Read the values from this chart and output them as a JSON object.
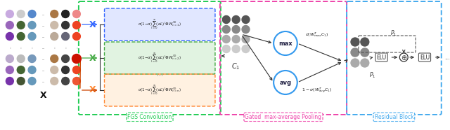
{
  "bg_color": "#ffffff",
  "fgs_box_color": "#22cc55",
  "gated_box_color": "#ee44aa",
  "residual_box_color": "#44aaee",
  "dot_grid": {
    "col_colors": [
      [
        "#c8aae0",
        "#9966bb",
        "#7733aa",
        "#bbaacc",
        "#9966bb",
        "#7733aa",
        "#6622aa"
      ],
      [
        "#cccccc",
        "#446633",
        "#446633",
        "#bbbbbb",
        "#446633",
        "#445533",
        "#445533"
      ],
      [
        "#5588cc",
        "#6699bb",
        "#6699bb",
        "#7799bb",
        "#6699bb",
        "#6699bb",
        "#5588aa"
      ],
      null,
      [
        "#aa7744",
        "#ccbbaa",
        "#bbaa99",
        "#aa7744",
        "#ccbbaa",
        "#ccbbaa",
        "#ccbbaa"
      ],
      [
        "#222222",
        "#333333",
        "#666677",
        "#444444",
        "#333333",
        "#444444",
        "#444444"
      ],
      [
        "#ee8888",
        "#ee4422",
        "#ee4422",
        "#ee7788",
        "#ee4422",
        "#ee5533",
        "#ee6644"
      ]
    ]
  },
  "c1_gray_cols": 3,
  "c1_gray_rows": 4,
  "res_gray_cols": 2,
  "res_gray_rows": 3,
  "formula1": "$\\sigma((1-\\alpha)\\sum_{l=0}^{\\infty}(\\alpha L)^l\\otimes W_{c=1}^{(1)})$",
  "formula2": "$\\sigma((1-\\alpha)\\sum_{l=0}^{\\infty}(\\alpha L)^l\\otimes W_{c=2}^{(1)})$",
  "formula3": "$\\sigma((1-\\alpha)\\sum_{l=0}^{\\infty}(\\alpha L)^l\\otimes W_{c=n}^{(1)})$"
}
